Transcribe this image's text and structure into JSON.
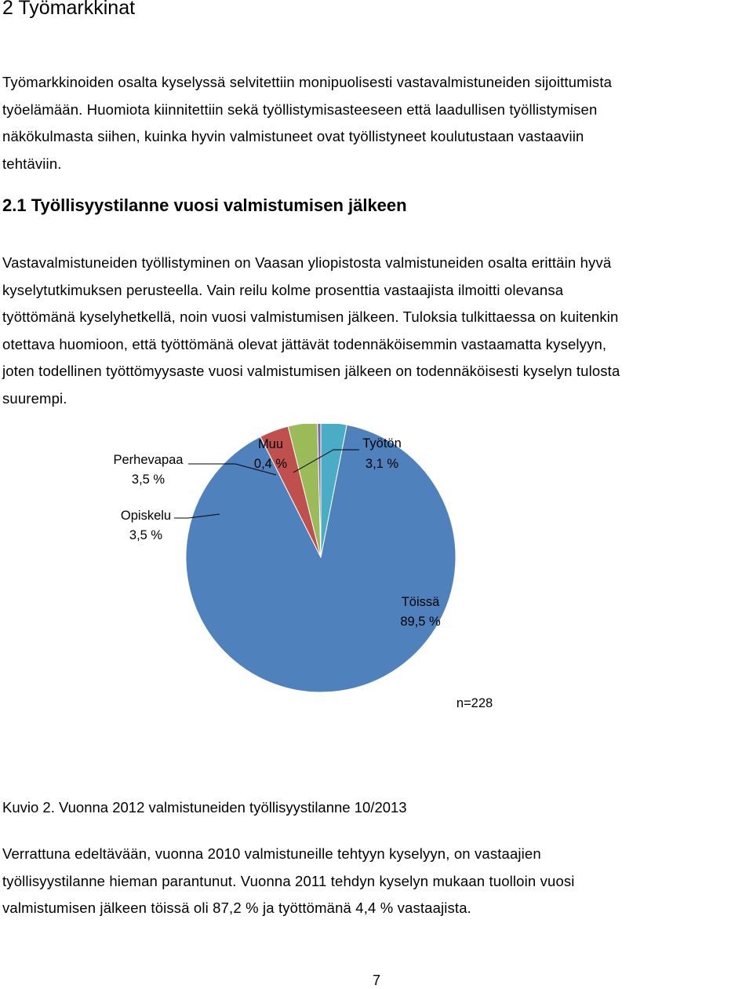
{
  "section_heading": "2 Työmarkkinat",
  "intro_paragraph": [
    "Työmarkkinoiden osalta kyselyssä selvitettiin monipuolisesti vastavalmistuneiden sijoittumista",
    "työelämään. Huomiota kiinnitettiin sekä työllistymisasteeseen että laadullisen työllistymisen",
    "näkökulmasta siihen, kuinka hyvin valmistuneet ovat työllistyneet koulutustaan vastaaviin",
    "tehtäviin."
  ],
  "subsection_heading": "2.1 Työllisyystilanne vuosi valmistumisen jälkeen",
  "body_paragraph": [
    "Vastavalmistuneiden työllistyminen on Vaasan yliopistosta valmistuneiden osalta erittäin hyvä",
    "kyselytutkimuksen perusteella. Vain reilu kolme prosenttia vastaajista ilmoitti olevansa",
    "työttömänä kyselyhetkellä, noin vuosi valmistumisen jälkeen. Tuloksia tulkittaessa on kuitenkin",
    "otettava huomioon, että työttömänä olevat jättävät todennäköisemmin vastaamatta kyselyyn,",
    "joten todellinen työttömyysaste vuosi valmistumisen jälkeen on todennäköisesti kyselyn tulosta",
    "suurempi."
  ],
  "chart_data": {
    "type": "pie",
    "title": "",
    "note": "n=228",
    "slices": [
      {
        "name": "Työtön",
        "value": 3.1,
        "label": "3,1 %",
        "color": "#4BACC6"
      },
      {
        "name": "Töissä",
        "value": 89.5,
        "label": "89,5 %",
        "color": "#4F81BD"
      },
      {
        "name": "Opiskelu",
        "value": 3.5,
        "label": "3,5 %",
        "color": "#C0504D"
      },
      {
        "name": "Perhevapaa",
        "value": 3.5,
        "label": "3,5 %",
        "color": "#9BBB59"
      },
      {
        "name": "Muu",
        "value": 0.4,
        "label": "0,4 %",
        "color": "#8064A2"
      }
    ]
  },
  "figure_caption": "Kuvio 2. Vuonna 2012 valmistuneiden työllisyystilanne 10/2013",
  "comparison_paragraph": [
    "Verrattuna edeltävään, vuonna 2010 valmistuneille tehtyyn kyselyyn, on vastaajien",
    "työllisyystilanne hieman parantunut. Vuonna 2011 tehdyn kyselyn mukaan tuolloin vuosi",
    "valmistumisen jälkeen töissä oli 87,2 % ja työttömänä 4,4 % vastaajista."
  ],
  "page_number": "7"
}
